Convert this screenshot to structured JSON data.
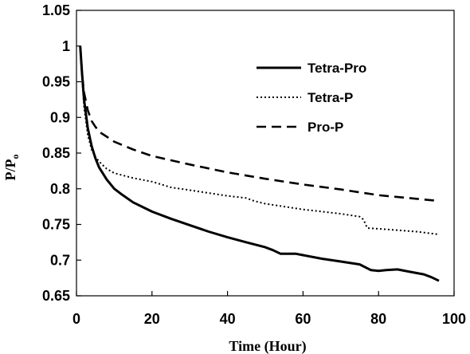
{
  "chart_data": {
    "type": "line",
    "title": "",
    "xlabel": "Time (Hour)",
    "ylabel": {
      "base": "P/P",
      "subscript": "o"
    },
    "xlim": [
      0,
      100
    ],
    "ylim": [
      0.65,
      1.05
    ],
    "xticks": [
      "0",
      "20",
      "40",
      "60",
      "80",
      "100"
    ],
    "yticks": [
      "0.65",
      "0.7",
      "0.75",
      "0.8",
      "0.85",
      "0.9",
      "0.95",
      "1",
      "1.05"
    ],
    "grid": false,
    "legend_position": "top-right",
    "series": [
      {
        "name": "Tetra-Pro",
        "style": "solid",
        "color": "#000000",
        "x": [
          1,
          1.5,
          2,
          3,
          4,
          5,
          6,
          8,
          10,
          12,
          15,
          20,
          25,
          30,
          35,
          40,
          45,
          50,
          52,
          54,
          56,
          58,
          60,
          65,
          70,
          75,
          78,
          80,
          82,
          85,
          88,
          92,
          94,
          96
        ],
        "y": [
          1.0,
          0.96,
          0.925,
          0.885,
          0.86,
          0.843,
          0.83,
          0.813,
          0.8,
          0.792,
          0.781,
          0.768,
          0.758,
          0.749,
          0.74,
          0.732,
          0.725,
          0.718,
          0.714,
          0.709,
          0.709,
          0.709,
          0.707,
          0.702,
          0.698,
          0.694,
          0.686,
          0.685,
          0.686,
          0.687,
          0.684,
          0.68,
          0.676,
          0.671
        ]
      },
      {
        "name": "Tetra-P",
        "style": "dotted",
        "color": "#000000",
        "x": [
          1,
          1.5,
          2,
          3,
          4,
          5,
          6,
          8,
          10,
          15,
          20,
          25,
          30,
          35,
          40,
          45,
          47,
          50,
          55,
          60,
          65,
          70,
          75,
          76,
          77,
          80,
          85,
          90,
          96
        ],
        "y": [
          1.0,
          0.955,
          0.915,
          0.875,
          0.855,
          0.845,
          0.838,
          0.828,
          0.822,
          0.815,
          0.81,
          0.802,
          0.798,
          0.794,
          0.79,
          0.787,
          0.783,
          0.779,
          0.775,
          0.771,
          0.768,
          0.765,
          0.761,
          0.757,
          0.745,
          0.744,
          0.742,
          0.74,
          0.736
        ]
      },
      {
        "name": "Pro-P",
        "style": "dashed",
        "color": "#000000",
        "x": [
          1,
          1.5,
          2,
          3,
          4,
          5,
          6,
          8,
          10,
          15,
          20,
          25,
          30,
          40,
          50,
          60,
          70,
          80,
          90,
          96
        ],
        "y": [
          1.0,
          0.96,
          0.935,
          0.91,
          0.895,
          0.887,
          0.88,
          0.873,
          0.866,
          0.855,
          0.846,
          0.84,
          0.834,
          0.823,
          0.814,
          0.806,
          0.799,
          0.791,
          0.786,
          0.783
        ]
      }
    ]
  }
}
